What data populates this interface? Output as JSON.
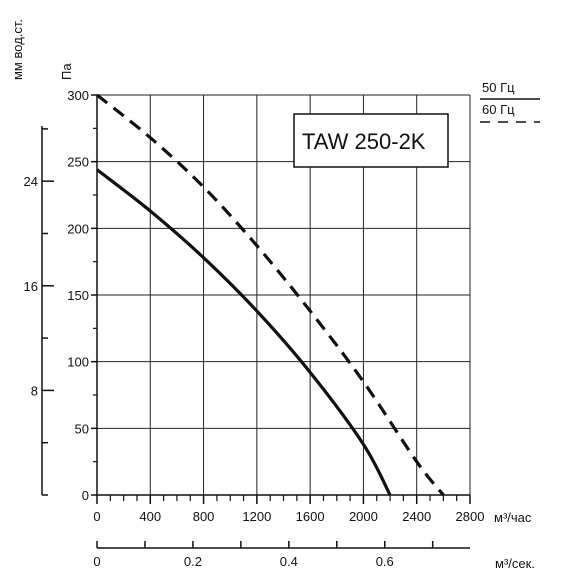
{
  "chart_data": {
    "type": "line",
    "title": "TAW 250-2K",
    "ylabel_primary": "Па",
    "ylabel_secondary": "мм вод.ст.",
    "xlabel_primary": "м³/час",
    "xlabel_secondary": "м³/сек.",
    "xlim": [
      0,
      2800
    ],
    "ylim": [
      0,
      300
    ],
    "x_ticks": [
      0,
      400,
      800,
      1200,
      1600,
      2000,
      2400,
      2800
    ],
    "x_tick_labels": [
      "0",
      "400",
      "800",
      "1200",
      "1600",
      "2000",
      "2400",
      "2800"
    ],
    "y_ticks": [
      0,
      50,
      100,
      150,
      200,
      250,
      300
    ],
    "y_tick_labels": [
      "0",
      "50",
      "100",
      "150",
      "200",
      "250",
      "300"
    ],
    "y2_ticks": [
      8,
      16,
      24
    ],
    "y2_tick_labels": [
      "8",
      "16",
      "24"
    ],
    "x2_ticks": [
      0,
      0.2,
      0.4,
      0.6
    ],
    "x2_tick_labels": [
      "0",
      "0.2",
      "0.4",
      "0.6"
    ],
    "grid": true,
    "legend_placement": "top-right",
    "series": [
      {
        "name": "50 Гц",
        "style": "solid",
        "x": [
          0,
          400,
          800,
          1200,
          1600,
          2000,
          2200
        ],
        "y": [
          244,
          213,
          178,
          138,
          92,
          38,
          0
        ]
      },
      {
        "name": "60 Гц",
        "style": "dashed",
        "x": [
          0,
          400,
          800,
          1200,
          1600,
          2000,
          2400,
          2600
        ],
        "y": [
          300,
          268,
          231,
          187,
          138,
          85,
          25,
          0
        ]
      }
    ]
  },
  "colors": {
    "line": "#111111",
    "grid": "#222222",
    "background": "#ffffff"
  }
}
